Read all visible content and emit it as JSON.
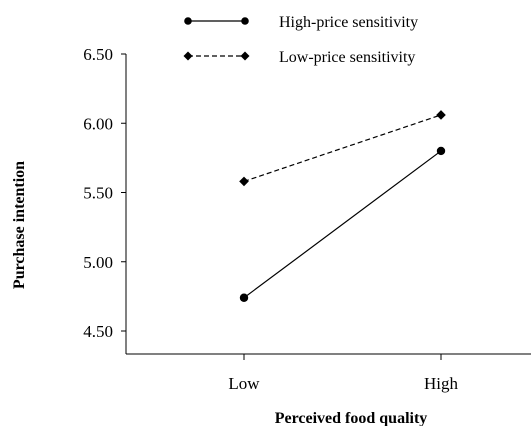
{
  "chart_data": {
    "type": "line",
    "title": "",
    "xlabel": "Perceived food quality",
    "ylabel": "Purchase intention",
    "categories": [
      "Low",
      "High"
    ],
    "ylim": [
      4.5,
      6.5
    ],
    "yticks": [
      "4.50",
      "5.00",
      "5.50",
      "6.00",
      "6.50"
    ],
    "grid": false,
    "legend_position": "top",
    "series": [
      {
        "name": "High-price sensitivity",
        "values": [
          4.74,
          5.8
        ],
        "line": "solid",
        "marker": "circle",
        "color": "#000000"
      },
      {
        "name": "Low-price sensitivity",
        "values": [
          5.58,
          6.06
        ],
        "line": "dashed",
        "marker": "diamond",
        "color": "#000000"
      }
    ]
  }
}
